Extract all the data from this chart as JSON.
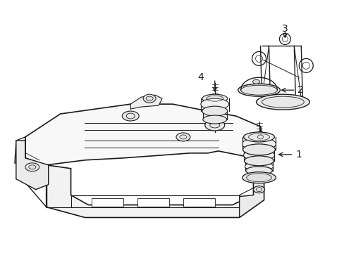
{
  "bg_color": "#ffffff",
  "line_color": "#1a1a1a",
  "fig_width": 4.89,
  "fig_height": 3.6,
  "dpi": 100,
  "label_fontsize": 9,
  "lw_main": 1.0,
  "lw_thin": 0.6
}
